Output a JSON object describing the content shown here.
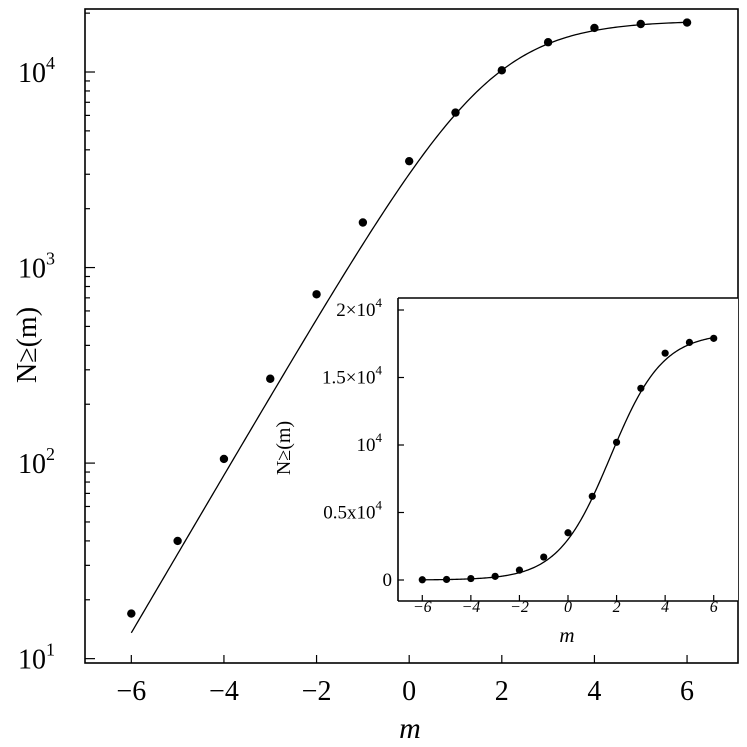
{
  "chart_data": [
    {
      "type": "scatter",
      "xlabel": "m",
      "ylabel": "N≥(m)",
      "yscale": "log",
      "xlim": [
        -7,
        7.1
      ],
      "ylim": [
        9.5,
        21000
      ],
      "xticks": [
        {
          "v": -6,
          "label": "−6"
        },
        {
          "v": -4,
          "label": "−4"
        },
        {
          "v": -2,
          "label": "−2"
        },
        {
          "v": 0,
          "label": "0"
        },
        {
          "v": 2,
          "label": "2"
        },
        {
          "v": 4,
          "label": "4"
        },
        {
          "v": 6,
          "label": "6"
        }
      ],
      "yticks": [
        {
          "v": 10,
          "base": "10",
          "exp": "1"
        },
        {
          "v": 100,
          "base": "10",
          "exp": "2"
        },
        {
          "v": 1000,
          "base": "10",
          "exp": "3"
        },
        {
          "v": 10000,
          "base": "10",
          "exp": "4"
        }
      ],
      "grid": false,
      "points": [
        {
          "x": -6,
          "y": 17
        },
        {
          "x": -5,
          "y": 40
        },
        {
          "x": -4,
          "y": 105
        },
        {
          "x": -3,
          "y": 270
        },
        {
          "x": -2,
          "y": 730
        },
        {
          "x": -1,
          "y": 1700
        },
        {
          "x": 0,
          "y": 3500
        },
        {
          "x": 1,
          "y": 6200
        },
        {
          "x": 2,
          "y": 10200
        },
        {
          "x": 3,
          "y": 14200
        },
        {
          "x": 4,
          "y": 16800
        },
        {
          "x": 5,
          "y": 17600
        },
        {
          "x": 6,
          "y": 17900
        }
      ],
      "fit_curve": true
    },
    {
      "type": "scatter",
      "inset": true,
      "xlabel": "m",
      "ylabel": "N≥(m)",
      "yscale": "linear",
      "xlim": [
        -7,
        7
      ],
      "ylim": [
        0,
        20000
      ],
      "xticks": [
        {
          "v": -6,
          "label": "−6"
        },
        {
          "v": -4,
          "label": "−4"
        },
        {
          "v": -2,
          "label": "−2"
        },
        {
          "v": 0,
          "label": "0"
        },
        {
          "v": 2,
          "label": "2"
        },
        {
          "v": 4,
          "label": "4"
        },
        {
          "v": 6,
          "label": "6"
        }
      ],
      "yticks": [
        {
          "v": 0,
          "label": "0"
        },
        {
          "v": 5000,
          "label": "0.5x10",
          "exp": "4"
        },
        {
          "v": 10000,
          "label": "10",
          "exp": "4"
        },
        {
          "v": 15000,
          "label": "1.5×10",
          "exp": "4"
        },
        {
          "v": 20000,
          "label": "2×10",
          "exp": "4"
        }
      ],
      "grid": false,
      "points": [
        {
          "x": -6,
          "y": 17
        },
        {
          "x": -5,
          "y": 40
        },
        {
          "x": -4,
          "y": 105
        },
        {
          "x": -3,
          "y": 270
        },
        {
          "x": -2,
          "y": 730
        },
        {
          "x": -1,
          "y": 1700
        },
        {
          "x": 0,
          "y": 3500
        },
        {
          "x": 1,
          "y": 6200
        },
        {
          "x": 2,
          "y": 10200
        },
        {
          "x": 3,
          "y": 14200
        },
        {
          "x": 4,
          "y": 16800
        },
        {
          "x": 5,
          "y": 17600
        },
        {
          "x": 6,
          "y": 17900
        }
      ],
      "fit_curve": true
    }
  ]
}
